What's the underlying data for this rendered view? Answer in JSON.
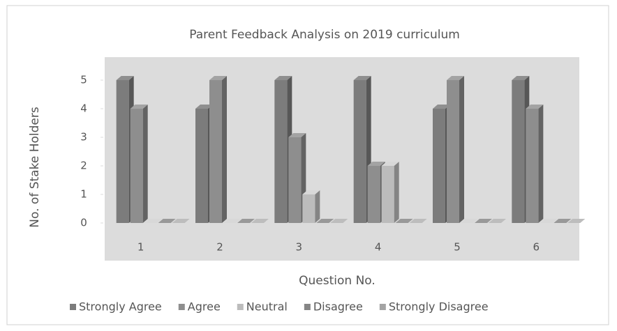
{
  "chart_data": {
    "type": "bar3d",
    "title": "Parent Feedback Analysis on 2019 curriculum",
    "x_label": "Question No.",
    "y_label": "No. of Stake Holders",
    "categories": [
      "1",
      "2",
      "3",
      "4",
      "5",
      "6"
    ],
    "series": [
      {
        "name": "Strongly Agree",
        "color": "#7c7c7c",
        "values": [
          5,
          4,
          5,
          5,
          4,
          5
        ]
      },
      {
        "name": "Agree",
        "color": "#8e8e8e",
        "values": [
          4,
          5,
          3,
          2,
          5,
          4
        ]
      },
      {
        "name": "Neutral",
        "color": "#bcbcbc",
        "values": [
          0,
          0,
          1,
          2,
          0,
          0
        ]
      },
      {
        "name": "Disagree",
        "color": "#858585",
        "values": [
          0,
          0,
          0,
          0,
          0,
          0
        ]
      },
      {
        "name": "Strongly Disagree",
        "color": "#a4a4a4",
        "values": [
          0,
          0,
          0,
          0,
          0,
          0
        ]
      }
    ],
    "ylim": [
      0,
      5
    ],
    "yticks": [
      0,
      1,
      2,
      3,
      4,
      5
    ],
    "legend": "bottom"
  }
}
